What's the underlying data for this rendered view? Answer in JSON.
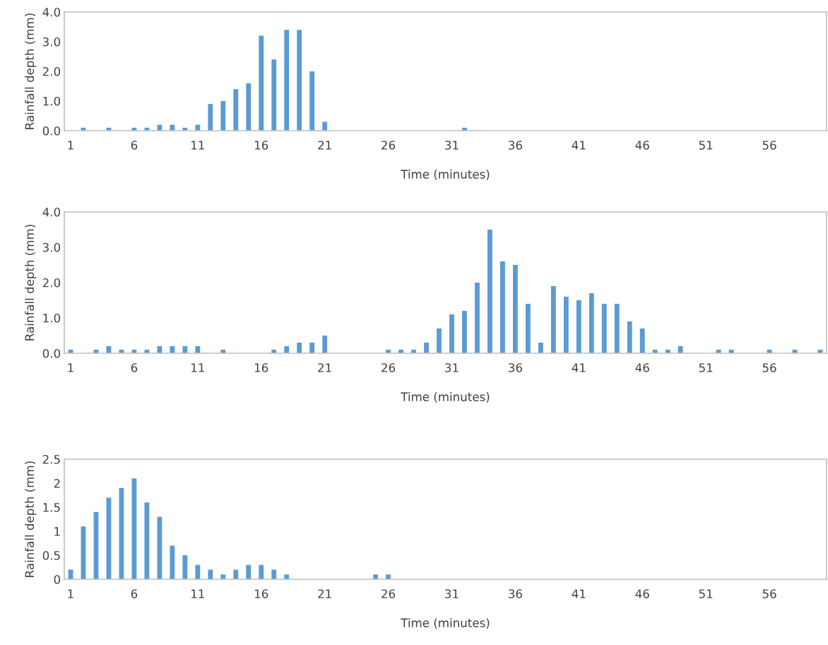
{
  "chart_data": [
    {
      "type": "bar",
      "xlabel": "Time (minutes)",
      "ylabel": "Rainfall depth (mm)",
      "color": "#5b9bd5",
      "categories": [
        "1",
        null,
        null,
        null,
        null,
        "6",
        null,
        null,
        null,
        null,
        "11",
        null,
        null,
        null,
        null,
        "16",
        null,
        null,
        null,
        null,
        "21",
        null,
        null,
        null,
        null,
        "26",
        null,
        null,
        null,
        null,
        "31",
        null,
        null,
        null,
        null,
        "36",
        null,
        null,
        null,
        null,
        "41",
        null,
        null,
        null,
        null,
        "46",
        null,
        null,
        null,
        null,
        "51",
        null,
        null,
        null,
        null,
        "56",
        null,
        null,
        null,
        null
      ],
      "values": [
        0,
        0.1,
        0,
        0.1,
        0,
        0.1,
        0.1,
        0.2,
        0.2,
        0.1,
        0.2,
        0.9,
        1.0,
        1.4,
        1.6,
        3.2,
        2.4,
        3.4,
        3.4,
        2.0,
        0.3,
        0,
        0,
        0,
        0,
        0,
        0,
        0,
        0,
        0,
        0,
        0.1,
        0,
        0,
        0,
        0,
        0,
        0,
        0,
        0,
        0,
        0,
        0,
        0,
        0,
        0,
        0,
        0,
        0,
        0,
        0,
        0,
        0,
        0,
        0,
        0,
        0,
        0,
        0,
        0
      ],
      "ylim": [
        0,
        4
      ],
      "yticks": [
        {
          "value": 0,
          "label": "0.0"
        },
        {
          "value": 1,
          "label": "1.0"
        },
        {
          "value": 2,
          "label": "2.0"
        },
        {
          "value": 3,
          "label": "3.0"
        },
        {
          "value": 4,
          "label": "4.0"
        }
      ],
      "grid": false,
      "legend": false
    },
    {
      "type": "bar",
      "xlabel": "Time (minutes)",
      "ylabel": "Rainfall depth (mm)",
      "color": "#5b9bd5",
      "categories": [
        "1",
        null,
        null,
        null,
        null,
        "6",
        null,
        null,
        null,
        null,
        "11",
        null,
        null,
        null,
        null,
        "16",
        null,
        null,
        null,
        null,
        "21",
        null,
        null,
        null,
        null,
        "26",
        null,
        null,
        null,
        null,
        "31",
        null,
        null,
        null,
        null,
        "36",
        null,
        null,
        null,
        null,
        "41",
        null,
        null,
        null,
        null,
        "46",
        null,
        null,
        null,
        null,
        "51",
        null,
        null,
        null,
        null,
        "56",
        null,
        null,
        null,
        null
      ],
      "values": [
        0.1,
        0,
        0.1,
        0.2,
        0.1,
        0.1,
        0.1,
        0.2,
        0.2,
        0.2,
        0.2,
        0,
        0.1,
        0,
        0,
        0,
        0.1,
        0.2,
        0.3,
        0.3,
        0.5,
        0,
        0,
        0,
        0,
        0.1,
        0.1,
        0.1,
        0.3,
        0.7,
        1.1,
        1.2,
        2.0,
        3.5,
        2.6,
        2.5,
        1.4,
        0.3,
        1.9,
        1.6,
        1.5,
        1.7,
        1.4,
        1.4,
        0.9,
        0.7,
        0.1,
        0.1,
        0.2,
        0,
        0,
        0.1,
        0.1,
        0,
        0,
        0.1,
        0,
        0.1,
        0,
        0.1
      ],
      "ylim": [
        0,
        4
      ],
      "yticks": [
        {
          "value": 0,
          "label": "0.0"
        },
        {
          "value": 1,
          "label": "1.0"
        },
        {
          "value": 2,
          "label": "2.0"
        },
        {
          "value": 3,
          "label": "3.0"
        },
        {
          "value": 4,
          "label": "4.0"
        }
      ],
      "grid": false,
      "legend": false
    },
    {
      "type": "bar",
      "xlabel": "Time (minutes)",
      "ylabel": "Rainfall depth (mm)",
      "color": "#5b9bd5",
      "categories": [
        "1",
        null,
        null,
        null,
        null,
        "6",
        null,
        null,
        null,
        null,
        "11",
        null,
        null,
        null,
        null,
        "16",
        null,
        null,
        null,
        null,
        "21",
        null,
        null,
        null,
        null,
        "26",
        null,
        null,
        null,
        null,
        "31",
        null,
        null,
        null,
        null,
        "36",
        null,
        null,
        null,
        null,
        "41",
        null,
        null,
        null,
        null,
        "46",
        null,
        null,
        null,
        null,
        "51",
        null,
        null,
        null,
        null,
        "56",
        null,
        null,
        null,
        null
      ],
      "values": [
        0.2,
        1.1,
        1.4,
        1.7,
        1.9,
        2.1,
        1.6,
        1.3,
        0.7,
        0.5,
        0.3,
        0.2,
        0.1,
        0.2,
        0.3,
        0.3,
        0.2,
        0.1,
        0,
        0,
        0,
        0,
        0,
        0,
        0.1,
        0.1,
        0,
        0,
        0,
        0,
        0,
        0,
        0,
        0,
        0,
        0,
        0,
        0,
        0,
        0,
        0,
        0,
        0,
        0,
        0,
        0,
        0,
        0,
        0,
        0,
        0,
        0,
        0,
        0,
        0,
        0,
        0,
        0,
        0,
        0
      ],
      "ylim": [
        0,
        2.5
      ],
      "yticks": [
        0,
        0.5,
        1,
        1.5,
        2,
        2.5
      ],
      "grid": false,
      "legend": false
    }
  ]
}
